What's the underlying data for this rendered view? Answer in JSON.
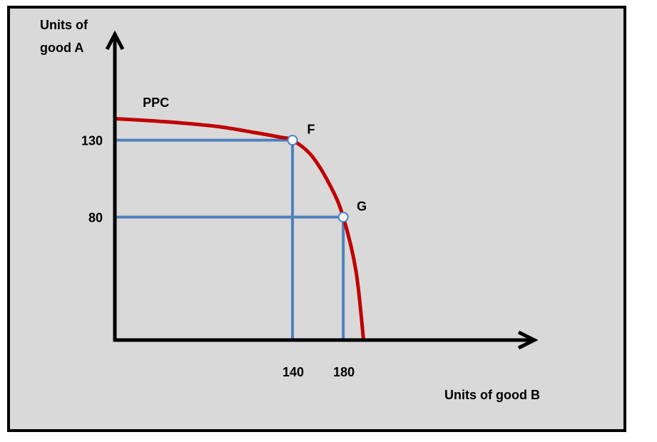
{
  "chart_data": {
    "type": "line",
    "ylabel_lines": [
      "Units of",
      "good A"
    ],
    "xlabel": "Units of good B",
    "curve_label": "PPC",
    "y_ticks": [
      {
        "value": 130,
        "label": "130"
      },
      {
        "value": 80,
        "label": "80"
      }
    ],
    "x_ticks": [
      {
        "value": 140,
        "label": "140"
      },
      {
        "value": 180,
        "label": "180"
      }
    ],
    "points": [
      {
        "name": "F",
        "x": 140,
        "y": 130
      },
      {
        "name": "G",
        "x": 180,
        "y": 80
      }
    ],
    "curve": [
      [
        0,
        144
      ],
      [
        40,
        142
      ],
      [
        80,
        139
      ],
      [
        110,
        135
      ],
      [
        130,
        132
      ],
      [
        140,
        130
      ],
      [
        155,
        120
      ],
      [
        170,
        100
      ],
      [
        180,
        80
      ],
      [
        190,
        45
      ],
      [
        196,
        0
      ]
    ],
    "xlim": [
      0,
      330
    ],
    "ylim": [
      0,
      198
    ],
    "grid": false,
    "colors": {
      "curve": "#c00000",
      "guides": "#4f81bd",
      "axes": "#000000",
      "background": "#d9d9d9"
    }
  }
}
